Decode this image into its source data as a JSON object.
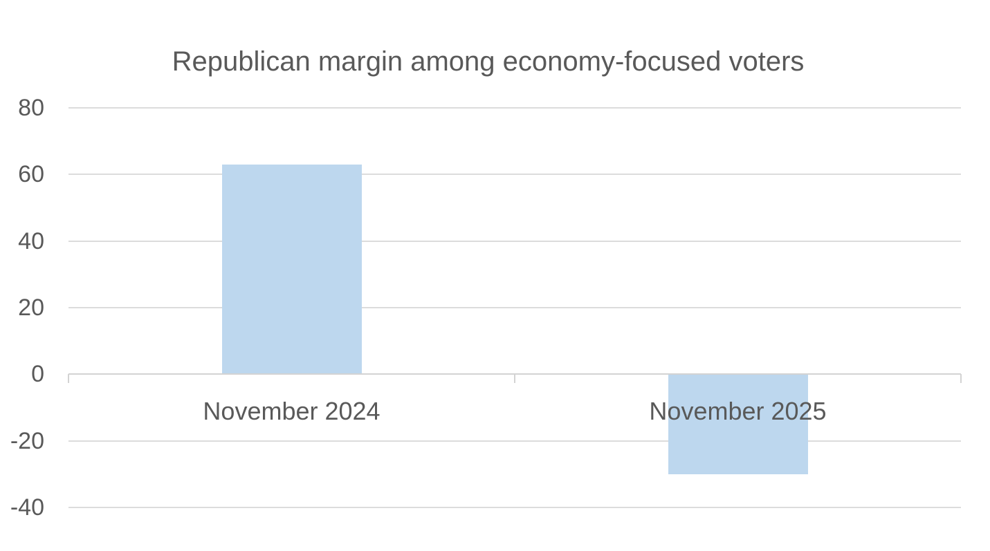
{
  "chart_data": {
    "type": "bar",
    "title": "Republican margin among economy-focused voters",
    "categories": [
      "November 2024",
      "November 2025"
    ],
    "values": [
      63,
      -30
    ],
    "xlabel": "",
    "ylabel": "",
    "ylim": [
      -40,
      80
    ],
    "yticks": [
      80,
      60,
      40,
      20,
      0,
      -20,
      -40
    ],
    "grid": true,
    "legend_position": "none",
    "bar_color": "#BDD7EE",
    "text_color": "#595959",
    "gridline_color": "#DCDCDC",
    "axis_line_color": "#D3D3D3",
    "background_color": "#FFFFFF"
  }
}
